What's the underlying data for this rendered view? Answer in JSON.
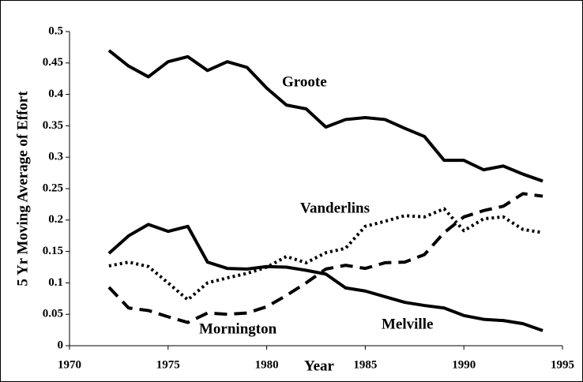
{
  "chart_data": {
    "type": "line",
    "x_label": "Year",
    "y_label": "5 Yr Moving Average of Effort",
    "x": [
      1972,
      1973,
      1974,
      1975,
      1976,
      1977,
      1978,
      1979,
      1980,
      1981,
      1982,
      1983,
      1984,
      1985,
      1986,
      1987,
      1988,
      1989,
      1990,
      1991,
      1992,
      1993,
      1994
    ],
    "series": [
      {
        "name": "Groote",
        "color": "#000000",
        "style": "solid",
        "values": [
          0.47,
          0.445,
          0.428,
          0.452,
          0.46,
          0.438,
          0.452,
          0.443,
          0.41,
          0.383,
          0.377,
          0.348,
          0.36,
          0.363,
          0.36,
          0.346,
          0.333,
          0.295,
          0.295,
          0.28,
          0.286,
          0.273,
          0.262
        ]
      },
      {
        "name": "Melville",
        "color": "#000000",
        "style": "solid",
        "values": [
          0.147,
          0.175,
          0.193,
          0.182,
          0.19,
          0.133,
          0.123,
          0.122,
          0.126,
          0.125,
          0.12,
          0.114,
          0.092,
          0.087,
          0.078,
          0.069,
          0.064,
          0.06,
          0.048,
          0.042,
          0.04,
          0.035,
          0.024
        ]
      },
      {
        "name": "Vanderlins",
        "color": "#000000",
        "style": "dotted",
        "values": [
          0.127,
          0.133,
          0.126,
          0.1,
          0.073,
          0.1,
          0.108,
          0.115,
          0.125,
          0.142,
          0.132,
          0.148,
          0.155,
          0.19,
          0.198,
          0.207,
          0.205,
          0.218,
          0.183,
          0.202,
          0.205,
          0.185,
          0.18
        ]
      },
      {
        "name": "Mornington",
        "color": "#000000",
        "style": "dashed",
        "values": [
          0.093,
          0.06,
          0.056,
          0.046,
          0.037,
          0.052,
          0.05,
          0.052,
          0.062,
          0.08,
          0.1,
          0.122,
          0.128,
          0.123,
          0.132,
          0.133,
          0.145,
          0.18,
          0.205,
          0.215,
          0.222,
          0.242,
          0.238
        ]
      }
    ],
    "xlim": [
      1970,
      1995
    ],
    "xticks": [
      1970,
      1975,
      1980,
      1985,
      1990,
      1995
    ],
    "ylim": [
      0,
      0.5
    ],
    "yticks": [
      0,
      0.05,
      0.1,
      0.15,
      0.2,
      0.25,
      0.3,
      0.35,
      0.4,
      0.45,
      0.5
    ],
    "grid": false
  }
}
